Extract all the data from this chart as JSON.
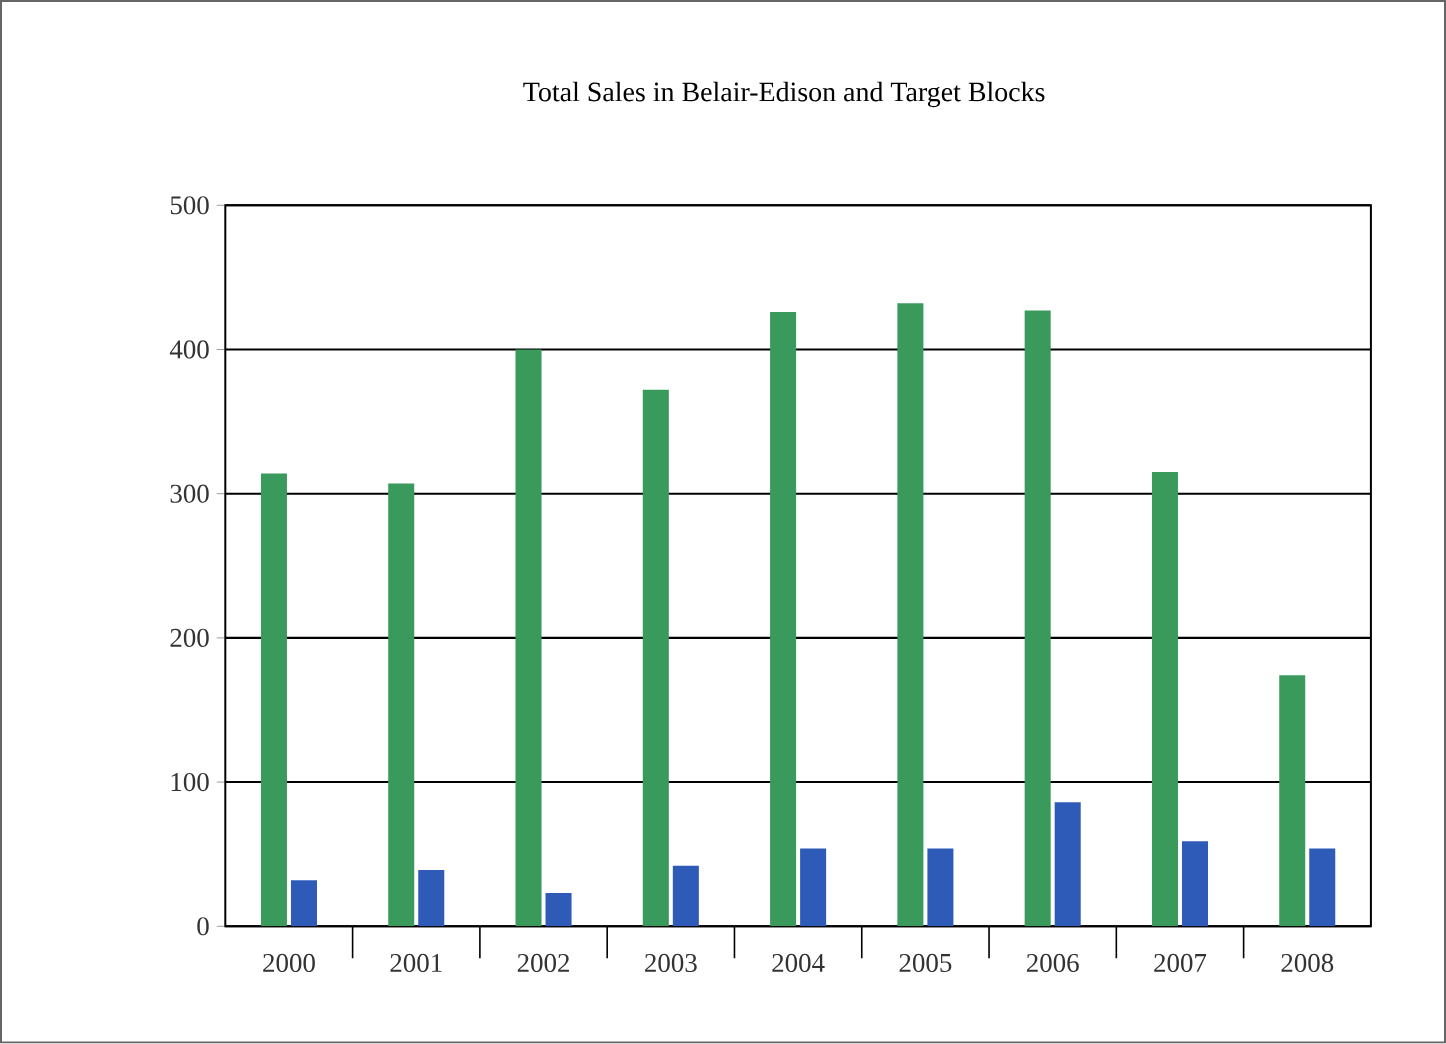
{
  "chart_data": {
    "type": "bar",
    "title": "Total Sales in Belair-Edison and Target Blocks",
    "categories": [
      "2000",
      "2001",
      "2002",
      "2003",
      "2004",
      "2005",
      "2006",
      "2007",
      "2008"
    ],
    "series": [
      {
        "color": "#3a9a5c",
        "values": [
          314,
          307,
          400,
          372,
          426,
          432,
          427,
          315,
          174
        ]
      },
      {
        "color": "#2e5bb8",
        "values": [
          32,
          39,
          23,
          42,
          54,
          54,
          86,
          59,
          54
        ]
      }
    ],
    "ylim": [
      0,
      500
    ],
    "yticks": [
      0,
      100,
      200,
      300,
      400,
      500
    ],
    "grid": "y"
  }
}
